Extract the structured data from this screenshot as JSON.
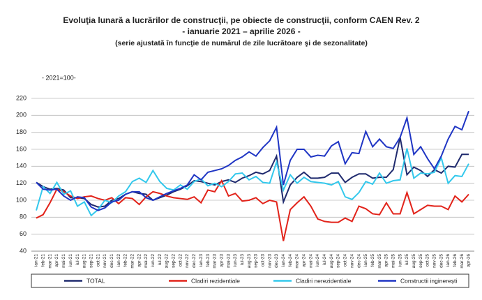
{
  "chart_data": {
    "type": "line",
    "title": "Evoluţia lunară a lucrărilor de construcţii, pe obiecte de construcţii, conform CAEN Rev. 2",
    "subtitle": "- ianuarie 2021 – aprilie 2026 -",
    "note": "(serie ajustată în funcţie de numărul de zile lucrătoare şi de sezonalitate)",
    "y_label": "- 2021=100-",
    "categories": [
      "ian-21",
      "feb-21",
      "mar-21",
      "apr-21",
      "mai-21",
      "iun-21",
      "iul-21",
      "aug-21",
      "sep-21",
      "oct-21",
      "nov-21",
      "dec-21",
      "ian-22",
      "feb-22",
      "mar-22",
      "apr-22",
      "mai-22",
      "iun-22",
      "iul-22",
      "aug-22",
      "sep-22",
      "oct-22",
      "nov-22",
      "dec-22",
      "ian-23",
      "feb-23",
      "mar-23",
      "apr-23",
      "mai-23",
      "iun-23",
      "iul-23",
      "aug-23",
      "sep-23",
      "oct-23",
      "nov-23",
      "dec-23",
      "ian-24",
      "feb-24",
      "mar-24",
      "apr-24",
      "mai-24",
      "iun-24",
      "iul-24",
      "aug-24",
      "sep-24",
      "oct-24",
      "nov-24",
      "dec-24",
      "ian-25",
      "feb-25",
      "mar-25",
      "apr-25",
      "mai-25",
      "iun-25",
      "iul-25",
      "aug-25",
      "sep-25",
      "oct-25",
      "nov-25",
      "dec-25",
      "ian-26",
      "feb-26",
      "mar-26",
      "apr-26"
    ],
    "series": [
      {
        "name": "TOTAL",
        "color": "#1f2a6e",
        "values": [
          121,
          116,
          113,
          114,
          112,
          103,
          103,
          102,
          95,
          92,
          93,
          100,
          102,
          107,
          110,
          108,
          107,
          100,
          103,
          106,
          110,
          113,
          117,
          123,
          122,
          120,
          118,
          122,
          124,
          121,
          126,
          129,
          133,
          131,
          135,
          152,
          98,
          118,
          127,
          133,
          126,
          126,
          127,
          132,
          132,
          121,
          127,
          131,
          131,
          126,
          127,
          127,
          136,
          174,
          130,
          139,
          135,
          128,
          136,
          132,
          140,
          139,
          154,
          154
        ]
      },
      {
        "name": "Cladiri rezidentiale",
        "color": "#e2231a",
        "values": [
          79,
          83,
          97,
          113,
          110,
          105,
          102,
          104,
          105,
          102,
          100,
          103,
          96,
          103,
          102,
          95,
          104,
          110,
          108,
          105,
          103,
          102,
          101,
          104,
          97,
          112,
          110,
          123,
          105,
          108,
          99,
          100,
          103,
          96,
          100,
          98,
          52,
          89,
          97,
          104,
          93,
          78,
          75,
          74,
          74,
          79,
          75,
          93,
          90,
          84,
          83,
          97,
          84,
          84,
          109,
          84,
          89,
          94,
          93,
          93,
          89,
          105,
          98,
          107
        ]
      },
      {
        "name": "Cladiri nerezidentiale",
        "color": "#33c8ec",
        "values": [
          88,
          116,
          108,
          121,
          107,
          111,
          93,
          98,
          82,
          89,
          100,
          97,
          105,
          110,
          122,
          126,
          121,
          135,
          122,
          114,
          112,
          118,
          113,
          122,
          125,
          117,
          120,
          116,
          122,
          131,
          132,
          124,
          128,
          121,
          120,
          145,
          112,
          130,
          120,
          127,
          122,
          121,
          120,
          118,
          122,
          104,
          101,
          109,
          122,
          119,
          132,
          120,
          123,
          124,
          161,
          126,
          132,
          131,
          133,
          150,
          120,
          129,
          128,
          143
        ]
      },
      {
        "name": "Constructii inginerești",
        "color": "#1f35c4",
        "values": [
          121,
          113,
          112,
          113,
          105,
          100,
          104,
          103,
          92,
          88,
          91,
          98,
          100,
          107,
          110,
          110,
          103,
          100,
          104,
          108,
          111,
          114,
          118,
          130,
          124,
          133,
          135,
          137,
          141,
          147,
          151,
          157,
          152,
          162,
          170,
          186,
          118,
          147,
          160,
          160,
          151,
          153,
          152,
          164,
          169,
          143,
          156,
          155,
          181,
          163,
          172,
          163,
          161,
          174,
          197,
          154,
          163,
          149,
          137,
          152,
          172,
          187,
          183,
          205
        ]
      }
    ],
    "ylim": [
      40,
      220
    ],
    "yticks": [
      40,
      60,
      80,
      100,
      120,
      140,
      160,
      180,
      200,
      220
    ],
    "grid": true
  }
}
